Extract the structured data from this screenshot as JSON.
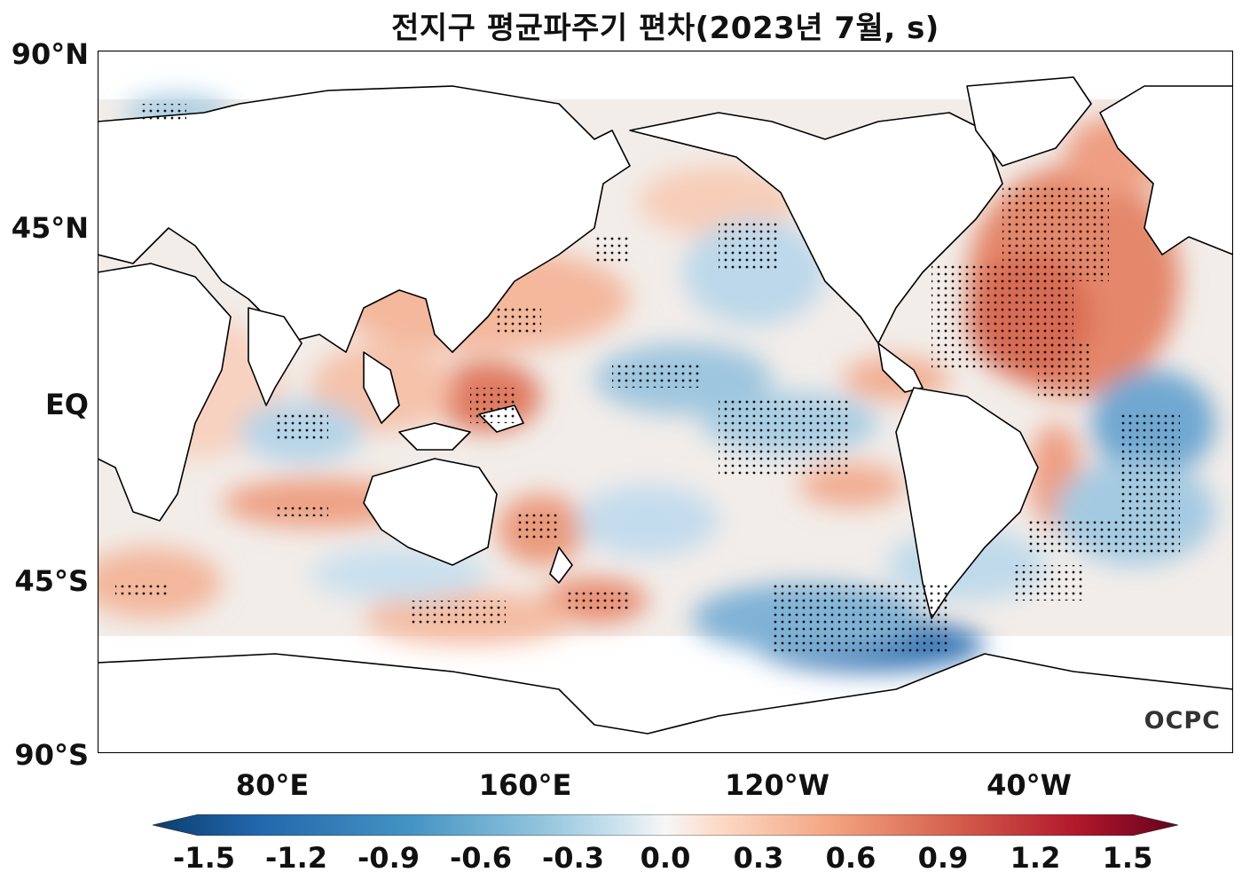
{
  "title": "전지구 평균파주기 편차(2023년 7월, s)",
  "logo": "OCPC",
  "lat_ticks": [
    "90°N",
    "45°N",
    "EQ",
    "45°S",
    "90°S"
  ],
  "lon_ticks": [
    "80°E",
    "160°E",
    "120°W",
    "40°W"
  ],
  "colorbar": {
    "ticks": [
      "-1.5",
      "-1.2",
      "-0.9",
      "-0.6",
      "-0.3",
      "0.0",
      "0.3",
      "0.6",
      "0.9",
      "1.2",
      "1.5"
    ],
    "colors": [
      "#0b3d6e",
      "#2166ac",
      "#4393c3",
      "#92c5de",
      "#d1e5f0",
      "#f7f7f7",
      "#fddbc7",
      "#f4a582",
      "#d6604d",
      "#b2182b",
      "#67001f"
    ]
  },
  "colors": {
    "land": "#ffffff",
    "coast": "#000000",
    "stipple": "#111111"
  }
}
